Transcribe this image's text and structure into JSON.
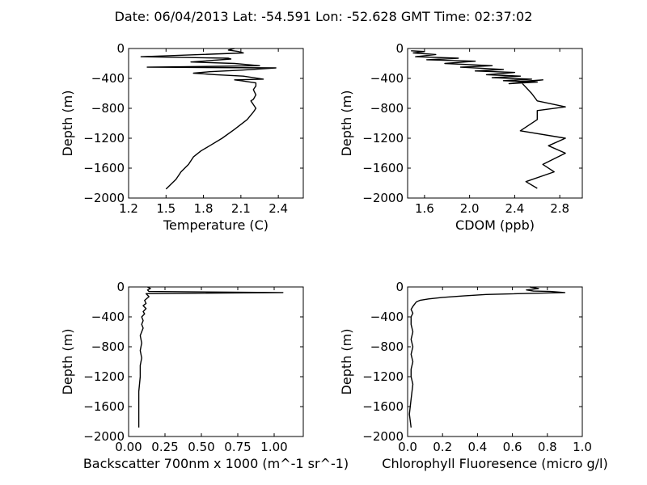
{
  "figure_title": "Date: 06/04/2013  Lat:  -54.591 Lon:  -52.628  GMT Time: 02:37:02",
  "chart_data": [
    {
      "type": "line",
      "xlabel": "Temperature (C)",
      "ylabel": "Depth (m)",
      "xlim": [
        1.2,
        2.6
      ],
      "ylim": [
        -2000,
        0
      ],
      "xticks": [
        "1.2",
        "1.5",
        "1.8",
        "2.1",
        "2.4"
      ],
      "xtick_values": [
        1.2,
        1.5,
        1.8,
        2.1,
        2.4
      ],
      "yticks": [
        "0",
        "−400",
        "−800",
        "−1200",
        "−1600",
        "−2000"
      ],
      "ytick_values": [
        0,
        -400,
        -800,
        -1200,
        -1600,
        -2000
      ],
      "grid": false,
      "series": [
        {
          "x": [
            2.05,
            2.0,
            2.08,
            2.12,
            1.3,
            1.65,
            2.0,
            2.02,
            1.7,
            2.05,
            2.25,
            1.35,
            2.38,
            2.1,
            1.85,
            1.72,
            1.9,
            2.12,
            2.2,
            2.28,
            2.05,
            2.1,
            2.22,
            2.22,
            2.2,
            2.22,
            2.2,
            2.18,
            2.2,
            2.22,
            2.2,
            2.15,
            2.05,
            1.95,
            1.85,
            1.78,
            1.72,
            1.68,
            1.62,
            1.58,
            1.5
          ],
          "y": [
            0,
            -20,
            -40,
            -60,
            -110,
            -120,
            -130,
            -140,
            -180,
            -200,
            -230,
            -250,
            -260,
            -290,
            -310,
            -330,
            -350,
            -370,
            -390,
            -410,
            -420,
            -430,
            -460,
            -500,
            -550,
            -620,
            -680,
            -700,
            -750,
            -800,
            -850,
            -950,
            -1080,
            -1200,
            -1300,
            -1370,
            -1450,
            -1550,
            -1650,
            -1750,
            -1880
          ]
        }
      ]
    },
    {
      "type": "line",
      "xlabel": "CDOM (ppb)",
      "ylabel": "Depth (m)",
      "xlim": [
        1.45,
        3.0
      ],
      "ylim": [
        -2000,
        0
      ],
      "xticks": [
        "1.6",
        "2.0",
        "2.4",
        "2.8"
      ],
      "xtick_values": [
        1.6,
        2.0,
        2.4,
        2.8
      ],
      "yticks": [
        "0",
        "−400",
        "−800",
        "−1200",
        "−1600",
        "−2000"
      ],
      "ytick_values": [
        0,
        -400,
        -800,
        -1200,
        -1600,
        -2000
      ],
      "grid": false,
      "series": [
        {
          "x": [
            1.48,
            1.6,
            1.5,
            1.7,
            1.52,
            1.9,
            1.62,
            2.05,
            1.78,
            2.2,
            1.92,
            2.3,
            2.05,
            2.4,
            2.15,
            2.45,
            2.2,
            2.55,
            2.3,
            2.6,
            2.35,
            2.65,
            2.45,
            2.55,
            2.6,
            2.85,
            2.6,
            2.6,
            2.45,
            2.85,
            2.7,
            2.85,
            2.65,
            2.75,
            2.5,
            2.6
          ],
          "y": [
            -30,
            -40,
            -60,
            -80,
            -110,
            -130,
            -150,
            -170,
            -200,
            -230,
            -250,
            -280,
            -300,
            -320,
            -350,
            -370,
            -390,
            -410,
            -430,
            -450,
            -470,
            -420,
            -440,
            -600,
            -700,
            -780,
            -830,
            -950,
            -1100,
            -1200,
            -1300,
            -1400,
            -1550,
            -1650,
            -1780,
            -1870
          ]
        }
      ]
    },
    {
      "type": "line",
      "xlabel": "Backscatter 700nm x 1000 (m^-1 sr^-1)",
      "ylabel": "Depth (m)",
      "xlim": [
        0.0,
        1.2
      ],
      "ylim": [
        -2000,
        0
      ],
      "xticks": [
        "0.00",
        "0.25",
        "0.50",
        "0.75",
        "1.00"
      ],
      "xtick_values": [
        0.0,
        0.25,
        0.5,
        0.75,
        1.0
      ],
      "yticks": [
        "0",
        "−400",
        "−800",
        "−1200",
        "−1600",
        "−2000"
      ],
      "ytick_values": [
        0,
        -400,
        -800,
        -1200,
        -1600,
        -2000
      ],
      "grid": false,
      "series": [
        {
          "x": [
            0.13,
            0.15,
            0.13,
            0.14,
            1.06,
            0.12,
            0.14,
            0.11,
            0.12,
            0.1,
            0.12,
            0.1,
            0.11,
            0.09,
            0.1,
            0.09,
            0.1,
            0.08,
            0.09,
            0.08,
            0.09,
            0.08,
            0.08,
            0.07,
            0.07,
            0.07,
            0.07
          ],
          "y": [
            0,
            -20,
            -40,
            -60,
            -75,
            -90,
            -130,
            -180,
            -220,
            -250,
            -290,
            -330,
            -360,
            -400,
            -450,
            -500,
            -550,
            -650,
            -750,
            -850,
            -950,
            -1050,
            -1200,
            -1400,
            -1600,
            -1750,
            -1880
          ]
        }
      ]
    },
    {
      "type": "line",
      "xlabel": "Chlorophyll Fluoresence (micro g/l)",
      "ylabel": "Depth (m)",
      "xlim": [
        0.0,
        1.0
      ],
      "ylim": [
        -2000,
        0
      ],
      "xticks": [
        "0.0",
        "0.2",
        "0.4",
        "0.6",
        "0.8",
        "1.0"
      ],
      "xtick_values": [
        0.0,
        0.2,
        0.4,
        0.6,
        0.8,
        1.0
      ],
      "yticks": [
        "0",
        "−400",
        "−800",
        "−1200",
        "−1600",
        "−2000"
      ],
      "ytick_values": [
        0,
        -400,
        -800,
        -1200,
        -1600,
        -2000
      ],
      "grid": false,
      "series": [
        {
          "x": [
            0.7,
            0.75,
            0.68,
            0.72,
            0.82,
            0.9,
            0.45,
            0.32,
            0.2,
            0.12,
            0.07,
            0.05,
            0.04,
            0.03,
            0.02,
            0.03,
            0.02,
            0.02,
            0.03,
            0.02,
            0.03,
            0.02,
            0.03,
            0.02,
            0.02,
            0.03,
            0.02,
            0.01,
            0.02
          ],
          "y": [
            0,
            -20,
            -40,
            -55,
            -60,
            -75,
            -100,
            -120,
            -140,
            -160,
            -180,
            -200,
            -230,
            -260,
            -300,
            -350,
            -400,
            -500,
            -600,
            -700,
            -800,
            -900,
            -1000,
            -1100,
            -1200,
            -1300,
            -1500,
            -1700,
            -1880
          ]
        }
      ]
    }
  ]
}
